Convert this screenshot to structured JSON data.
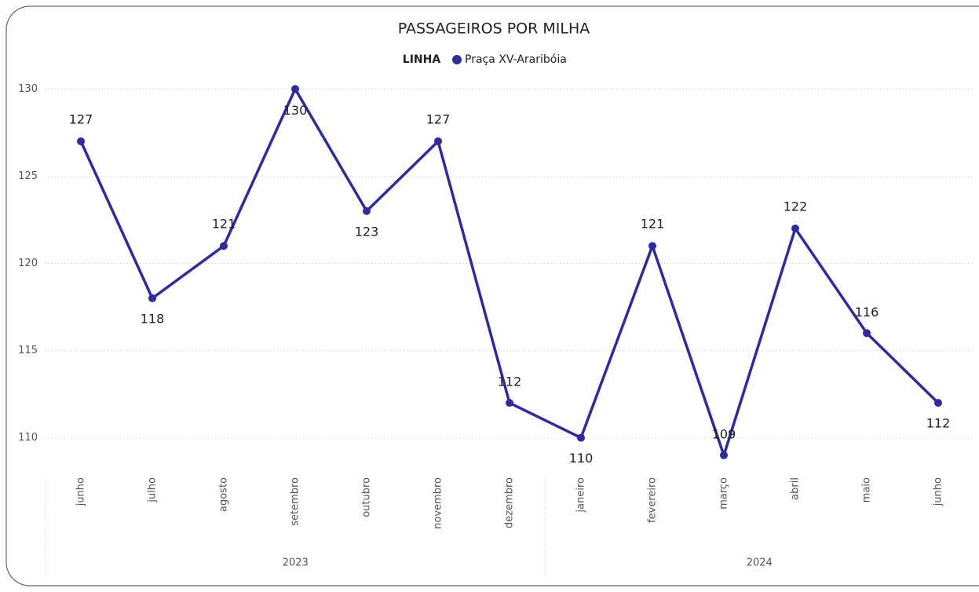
{
  "chart_data": {
    "type": "line",
    "title": "PASSAGEIROS POR MILHA",
    "legend_title": "LINHA",
    "categories": [
      "junho",
      "julho",
      "agosto",
      "setembro",
      "outubro",
      "novembro",
      "dezembro",
      "janeiro",
      "fevereiro",
      "março",
      "abril",
      "maio",
      "junho"
    ],
    "groups": [
      {
        "label": "2023",
        "span": 7
      },
      {
        "label": "2024",
        "span": 6
      }
    ],
    "series": [
      {
        "name": "Praça XV-Araribóia",
        "color": "#2e2ba0",
        "values": [
          127,
          118,
          121,
          130,
          123,
          127,
          112,
          110,
          121,
          109,
          122,
          116,
          112
        ]
      }
    ],
    "ylim": [
      108,
      130.6
    ],
    "yticks": [
      110,
      115,
      120,
      125,
      130
    ],
    "grid": true
  }
}
